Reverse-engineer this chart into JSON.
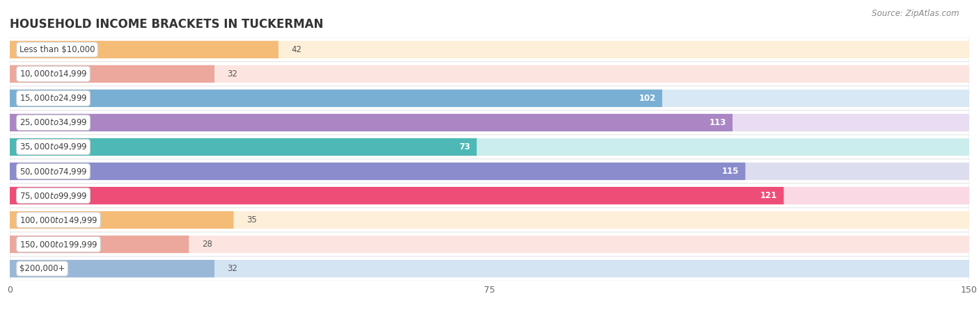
{
  "title": "HOUSEHOLD INCOME BRACKETS IN TUCKERMAN",
  "source": "Source: ZipAtlas.com",
  "categories": [
    "Less than $10,000",
    "$10,000 to $14,999",
    "$15,000 to $24,999",
    "$25,000 to $34,999",
    "$35,000 to $49,999",
    "$50,000 to $74,999",
    "$75,000 to $99,999",
    "$100,000 to $149,999",
    "$150,000 to $199,999",
    "$200,000+"
  ],
  "values": [
    42,
    32,
    102,
    113,
    73,
    115,
    121,
    35,
    28,
    32
  ],
  "bar_colors": [
    "#f5bc78",
    "#eda89e",
    "#7aafd4",
    "#aa87c4",
    "#4db8b5",
    "#8a8ccc",
    "#ee4d78",
    "#f5bc78",
    "#eda89e",
    "#99b8d8"
  ],
  "bar_bg_colors": [
    "#fdefd8",
    "#fce5e0",
    "#d8e8f5",
    "#e8ddf2",
    "#cceded",
    "#ddddf0",
    "#fad8e4",
    "#fdefd8",
    "#fce5e0",
    "#d5e4f2"
  ],
  "xlim": [
    0,
    150
  ],
  "xticks": [
    0,
    75,
    150
  ],
  "label_inside_threshold": 60,
  "title_fontsize": 12,
  "label_fontsize": 8.5,
  "value_fontsize": 8.5,
  "source_fontsize": 8.5
}
